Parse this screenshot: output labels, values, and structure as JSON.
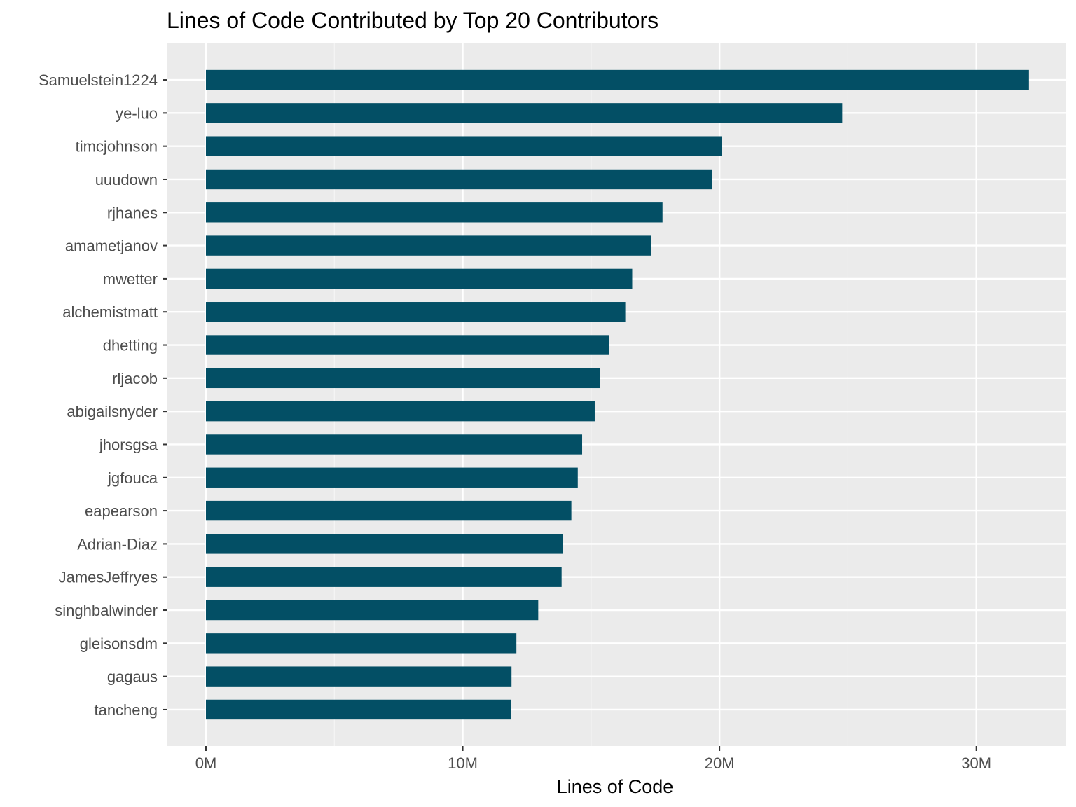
{
  "chart_data": {
    "type": "bar",
    "orientation": "horizontal",
    "title": "Lines of Code Contributed by Top 20 Contributors",
    "xlabel": "Lines of Code",
    "ylabel": "",
    "xlim": [
      -1500000,
      33500000
    ],
    "x_ticks": [
      0,
      10000000,
      20000000,
      30000000
    ],
    "x_tick_labels": [
      "0M",
      "10M",
      "20M",
      "30M"
    ],
    "grid": true,
    "legend": "none",
    "categories": [
      "Samuelstein1224",
      "ye-luo",
      "timcjohnson",
      "uuudown",
      "rjhanes",
      "amametjanov",
      "mwetter",
      "alchemistmatt",
      "dhetting",
      "rljacob",
      "abigailsnyder",
      "jhorsgsa",
      "jgfouca",
      "eapearson",
      "Adrian-Diaz",
      "JamesJeffryes",
      "singhbalwinder",
      "gleisonsdm",
      "gagaus",
      "tancheng"
    ],
    "values": [
      32050000,
      24780000,
      20080000,
      19720000,
      17780000,
      17350000,
      16600000,
      16330000,
      15690000,
      15340000,
      15140000,
      14650000,
      14480000,
      14230000,
      13900000,
      13850000,
      12940000,
      12090000,
      11900000,
      11870000
    ],
    "colors": {
      "bar": "#034f65",
      "panel_background": "#ebebeb",
      "grid_major": "#ffffff",
      "grid_minor": "#f5f5f5",
      "tick": "#333333",
      "tick_label": "#4d4d4d",
      "title": "#000000"
    }
  }
}
